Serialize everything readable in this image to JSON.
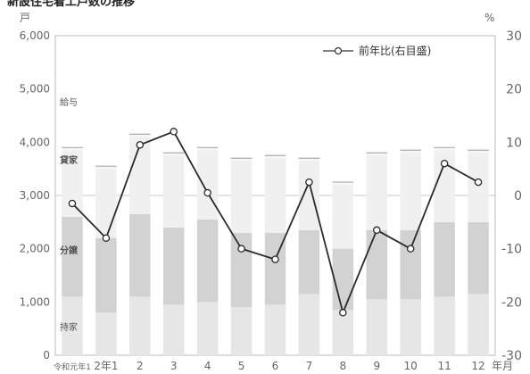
{
  "chart_data": {
    "type": "bar+line",
    "title": "新設住宅着工戸数の推移",
    "left_axis": {
      "unit": "戸",
      "ylim": [
        0,
        6000
      ],
      "ticks": [
        "0",
        "1,000",
        "2,000",
        "3,000",
        "4,000",
        "5,000",
        "6,000"
      ]
    },
    "right_axis": {
      "unit": "%",
      "ylim": [
        -30,
        30
      ],
      "ticks": [
        "-30",
        "-20",
        "-10",
        "0",
        "10",
        "20",
        "30"
      ]
    },
    "x_unit": "年月",
    "categories": [
      "令和元年1",
      "2年1",
      "2",
      "3",
      "4",
      "5",
      "6",
      "7",
      "8",
      "9",
      "10",
      "11",
      "12"
    ],
    "bar_segments": [
      {
        "name": "持家",
        "values": [
          1100,
          800,
          1100,
          950,
          1000,
          900,
          950,
          1150,
          850,
          1050,
          1050,
          1100,
          1150
        ]
      },
      {
        "name": "分譲",
        "values": [
          1500,
          1400,
          1550,
          1450,
          1550,
          1400,
          1350,
          1200,
          1150,
          1300,
          1300,
          1400,
          1350
        ]
      },
      {
        "name": "貸家",
        "values": [
          1250,
          1300,
          1450,
          1350,
          1300,
          1350,
          1400,
          1300,
          1200,
          1400,
          1450,
          1350,
          1300
        ]
      },
      {
        "name": "給与",
        "values": [
          50,
          50,
          50,
          50,
          50,
          50,
          50,
          50,
          50,
          50,
          50,
          50,
          50
        ]
      }
    ],
    "line_series": {
      "name": "前年比(右目盛)",
      "values": [
        -1.5,
        -8,
        9.5,
        12,
        0.5,
        -10,
        -12,
        2.5,
        -22,
        -6.5,
        -10,
        6,
        2.5
      ]
    },
    "inner_labels": {
      "kyuyo": "給与",
      "kashiya": "貸家",
      "bunjo": "分譲",
      "mochiie": "持家"
    }
  }
}
